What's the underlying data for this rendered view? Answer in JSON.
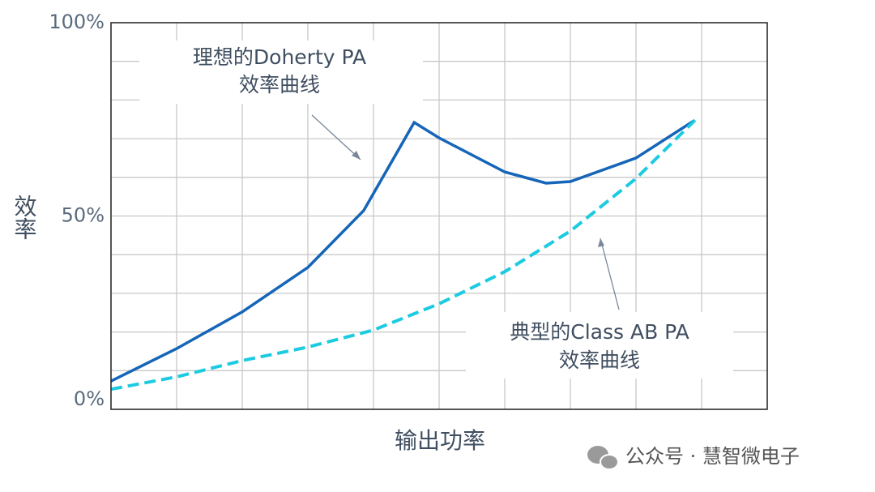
{
  "chart_data": {
    "type": "line",
    "ylabel": "效率",
    "xlabel": "输出功率",
    "xlim": [
      0,
      10
    ],
    "ylim": [
      0,
      100
    ],
    "yticks": [
      {
        "value": 0,
        "label": "0%"
      },
      {
        "value": 50,
        "label": "50%"
      },
      {
        "value": 100,
        "label": "100%"
      }
    ],
    "xgrid": [
      0,
      1,
      2,
      3,
      4,
      5,
      6,
      7,
      8,
      9,
      10
    ],
    "ygrid": [
      0,
      10,
      20,
      30,
      40,
      50,
      60,
      70,
      80,
      90,
      100
    ],
    "series": [
      {
        "name": "理想的Doherty PA",
        "color": "#1565b8",
        "dash": false,
        "x": [
          0,
          1,
          2,
          3,
          3.85,
          4.62,
          5,
          6,
          6.63,
          7,
          8,
          8.88
        ],
        "values": [
          7.3,
          15.7,
          25.2,
          36.7,
          51.4,
          74.2,
          70.2,
          61.4,
          58.5,
          58.9,
          65,
          74.6
        ]
      },
      {
        "name": "典型的Class AB PA",
        "color": "#1ccbe0",
        "dash": true,
        "x": [
          0,
          1,
          2,
          3,
          4,
          5,
          6,
          7,
          8,
          8.9
        ],
        "values": [
          5.2,
          8.4,
          12.6,
          16.1,
          20.5,
          27.3,
          35.6,
          46.1,
          59.7,
          74.8
        ]
      }
    ],
    "annotations": [
      {
        "lines": [
          "理想的Doherty PA",
          "效率曲线"
        ]
      },
      {
        "lines": [
          "典型的Class AB PA",
          "效率曲线"
        ]
      }
    ],
    "watermark": "公众号 · 慧智微电子"
  }
}
